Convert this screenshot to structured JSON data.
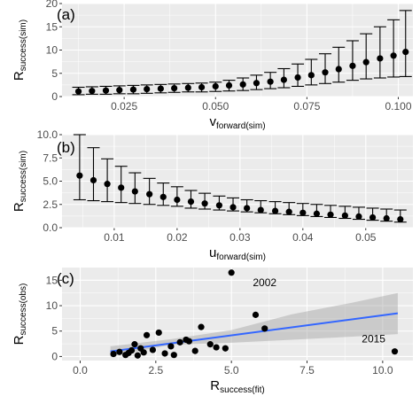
{
  "chart_data": [
    {
      "type": "scatter",
      "panel_label": "(a)",
      "xlabel_main": "v",
      "xlabel_sub": "forward(sim)",
      "ylabel_main": "R",
      "ylabel_sub": "success(sim)",
      "xlim": [
        0.008,
        0.104
      ],
      "ylim": [
        0,
        20
      ],
      "x_ticks": [
        0.025,
        0.05,
        0.075,
        0.1
      ],
      "x_tick_labels": [
        "0.025",
        "0.050",
        "0.075",
        "0.100"
      ],
      "y_ticks": [
        0,
        5,
        10,
        15,
        20
      ],
      "y_tick_labels": [
        "0",
        "5",
        "10",
        "15",
        "20"
      ],
      "grid": true,
      "points": [
        {
          "x": 0.0125,
          "y": 1.1,
          "lo": 0.4,
          "hi": 2.0
        },
        {
          "x": 0.0162,
          "y": 1.2,
          "lo": 0.5,
          "hi": 2.1
        },
        {
          "x": 0.02,
          "y": 1.3,
          "lo": 0.5,
          "hi": 2.2
        },
        {
          "x": 0.0237,
          "y": 1.4,
          "lo": 0.6,
          "hi": 2.3
        },
        {
          "x": 0.0275,
          "y": 1.5,
          "lo": 0.6,
          "hi": 2.4
        },
        {
          "x": 0.0312,
          "y": 1.6,
          "lo": 0.7,
          "hi": 2.5
        },
        {
          "x": 0.035,
          "y": 1.7,
          "lo": 0.8,
          "hi": 2.6
        },
        {
          "x": 0.0387,
          "y": 1.8,
          "lo": 0.9,
          "hi": 2.7
        },
        {
          "x": 0.0425,
          "y": 1.9,
          "lo": 1.0,
          "hi": 2.8
        },
        {
          "x": 0.0462,
          "y": 2.0,
          "lo": 1.0,
          "hi": 2.9
        },
        {
          "x": 0.05,
          "y": 2.2,
          "lo": 1.1,
          "hi": 3.1
        },
        {
          "x": 0.0537,
          "y": 2.4,
          "lo": 1.2,
          "hi": 3.5
        },
        {
          "x": 0.0575,
          "y": 2.6,
          "lo": 1.3,
          "hi": 4.0
        },
        {
          "x": 0.0612,
          "y": 2.9,
          "lo": 1.5,
          "hi": 4.6
        },
        {
          "x": 0.065,
          "y": 3.2,
          "lo": 1.7,
          "hi": 5.2
        },
        {
          "x": 0.0687,
          "y": 3.6,
          "lo": 1.9,
          "hi": 6.0
        },
        {
          "x": 0.0725,
          "y": 4.1,
          "lo": 2.2,
          "hi": 7.0
        },
        {
          "x": 0.0762,
          "y": 4.6,
          "lo": 2.5,
          "hi": 8.0
        },
        {
          "x": 0.08,
          "y": 5.2,
          "lo": 2.8,
          "hi": 9.2
        },
        {
          "x": 0.0837,
          "y": 5.9,
          "lo": 3.1,
          "hi": 10.6
        },
        {
          "x": 0.0875,
          "y": 6.6,
          "lo": 3.5,
          "hi": 12.0
        },
        {
          "x": 0.0912,
          "y": 7.4,
          "lo": 3.8,
          "hi": 13.5
        },
        {
          "x": 0.095,
          "y": 8.2,
          "lo": 4.0,
          "hi": 15.0
        },
        {
          "x": 0.0987,
          "y": 8.8,
          "lo": 4.2,
          "hi": 16.5
        },
        {
          "x": 0.102,
          "y": 9.6,
          "lo": 4.3,
          "hi": 18.5
        }
      ]
    },
    {
      "type": "scatter",
      "panel_label": "(b)",
      "xlabel_main": "u",
      "xlabel_sub": "forward(sim)",
      "ylabel_main": "R",
      "ylabel_sub": "success(sim)",
      "xlim": [
        0.0017,
        0.0575
      ],
      "ylim": [
        0,
        10
      ],
      "x_ticks": [
        0.01,
        0.02,
        0.03,
        0.04,
        0.05
      ],
      "x_tick_labels": [
        "0.01",
        "0.02",
        "0.03",
        "0.04",
        "0.05"
      ],
      "y_ticks": [
        0,
        2.5,
        5,
        7.5,
        10
      ],
      "y_tick_labels": [
        "0.0",
        "2.5",
        "5.0",
        "7.5",
        "10.0"
      ],
      "grid": true,
      "points": [
        {
          "x": 0.0045,
          "y": 5.6,
          "lo": 3.0,
          "hi": 10.0
        },
        {
          "x": 0.0067,
          "y": 5.1,
          "lo": 2.9,
          "hi": 8.6
        },
        {
          "x": 0.0089,
          "y": 4.7,
          "lo": 2.8,
          "hi": 7.4
        },
        {
          "x": 0.0111,
          "y": 4.3,
          "lo": 2.7,
          "hi": 6.6
        },
        {
          "x": 0.0133,
          "y": 3.9,
          "lo": 2.6,
          "hi": 5.9
        },
        {
          "x": 0.0156,
          "y": 3.6,
          "lo": 2.5,
          "hi": 5.3
        },
        {
          "x": 0.0178,
          "y": 3.3,
          "lo": 2.4,
          "hi": 4.8
        },
        {
          "x": 0.02,
          "y": 3.0,
          "lo": 2.3,
          "hi": 4.4
        },
        {
          "x": 0.0222,
          "y": 2.8,
          "lo": 2.1,
          "hi": 4.0
        },
        {
          "x": 0.0244,
          "y": 2.6,
          "lo": 2.0,
          "hi": 3.7
        },
        {
          "x": 0.0267,
          "y": 2.4,
          "lo": 1.9,
          "hi": 3.4
        },
        {
          "x": 0.0289,
          "y": 2.2,
          "lo": 1.8,
          "hi": 3.2
        },
        {
          "x": 0.0311,
          "y": 2.1,
          "lo": 1.7,
          "hi": 3.0
        },
        {
          "x": 0.0333,
          "y": 1.9,
          "lo": 1.6,
          "hi": 2.9
        },
        {
          "x": 0.0356,
          "y": 1.8,
          "lo": 1.5,
          "hi": 2.8
        },
        {
          "x": 0.0378,
          "y": 1.7,
          "lo": 1.4,
          "hi": 2.7
        },
        {
          "x": 0.04,
          "y": 1.6,
          "lo": 1.3,
          "hi": 2.6
        },
        {
          "x": 0.0422,
          "y": 1.5,
          "lo": 1.2,
          "hi": 2.5
        },
        {
          "x": 0.0444,
          "y": 1.4,
          "lo": 1.1,
          "hi": 2.4
        },
        {
          "x": 0.0467,
          "y": 1.3,
          "lo": 1.0,
          "hi": 2.3
        },
        {
          "x": 0.0489,
          "y": 1.2,
          "lo": 0.9,
          "hi": 2.2
        },
        {
          "x": 0.0511,
          "y": 1.1,
          "lo": 0.8,
          "hi": 2.1
        },
        {
          "x": 0.0533,
          "y": 1.0,
          "lo": 0.7,
          "hi": 2.0
        },
        {
          "x": 0.0555,
          "y": 0.9,
          "lo": 0.6,
          "hi": 1.9
        }
      ]
    },
    {
      "type": "scatter",
      "panel_label": "(c)",
      "xlabel_main": "R",
      "xlabel_sub": "success(fit)",
      "ylabel_main": "R",
      "ylabel_sub": "success(obs)",
      "xlim": [
        -0.6,
        11.0
      ],
      "ylim": [
        -0.8,
        17.5
      ],
      "x_ticks": [
        0,
        2.5,
        5,
        7.5,
        10
      ],
      "x_tick_labels": [
        "0.0",
        "2.5",
        "5.0",
        "7.5",
        "10.0"
      ],
      "y_ticks": [
        0,
        5,
        10,
        15
      ],
      "y_tick_labels": [
        "0",
        "5",
        "10",
        "15"
      ],
      "grid": true,
      "points": [
        {
          "x": 1.1,
          "y": 0.5
        },
        {
          "x": 1.3,
          "y": 0.9
        },
        {
          "x": 1.5,
          "y": 0.3
        },
        {
          "x": 1.6,
          "y": 0.7
        },
        {
          "x": 1.7,
          "y": 1.2
        },
        {
          "x": 1.8,
          "y": 2.4
        },
        {
          "x": 1.9,
          "y": 0.2
        },
        {
          "x": 2.0,
          "y": 1.6
        },
        {
          "x": 2.1,
          "y": 0.8
        },
        {
          "x": 2.2,
          "y": 4.2
        },
        {
          "x": 2.4,
          "y": 1.3
        },
        {
          "x": 2.6,
          "y": 4.7
        },
        {
          "x": 2.8,
          "y": 0.6
        },
        {
          "x": 3.0,
          "y": 2.0
        },
        {
          "x": 3.1,
          "y": 0.3
        },
        {
          "x": 3.3,
          "y": 2.8
        },
        {
          "x": 3.5,
          "y": 3.3
        },
        {
          "x": 3.6,
          "y": 3.0
        },
        {
          "x": 3.8,
          "y": 1.1
        },
        {
          "x": 4.0,
          "y": 5.8
        },
        {
          "x": 4.3,
          "y": 2.4
        },
        {
          "x": 4.5,
          "y": 1.8
        },
        {
          "x": 4.8,
          "y": 1.6
        },
        {
          "x": 5.0,
          "y": 16.5
        },
        {
          "x": 5.8,
          "y": 8.2
        },
        {
          "x": 6.1,
          "y": 5.5
        },
        {
          "x": 10.4,
          "y": 1.0
        }
      ],
      "fit_line": {
        "x": [
          1.0,
          10.5
        ],
        "y": [
          1.0,
          8.5
        ]
      },
      "band": {
        "x": [
          1.0,
          3.0,
          5.0,
          7.0,
          9.0,
          10.5
        ],
        "lo": [
          0.0,
          2.3,
          2.7,
          3.3,
          3.9,
          4.4
        ],
        "hi": [
          2.0,
          3.4,
          5.2,
          8.3,
          10.6,
          12.5
        ]
      },
      "annotations": [
        {
          "text": "2002",
          "x": 6.1,
          "y": 13.8
        },
        {
          "text": "2015",
          "x": 9.7,
          "y": 2.8
        }
      ]
    }
  ]
}
